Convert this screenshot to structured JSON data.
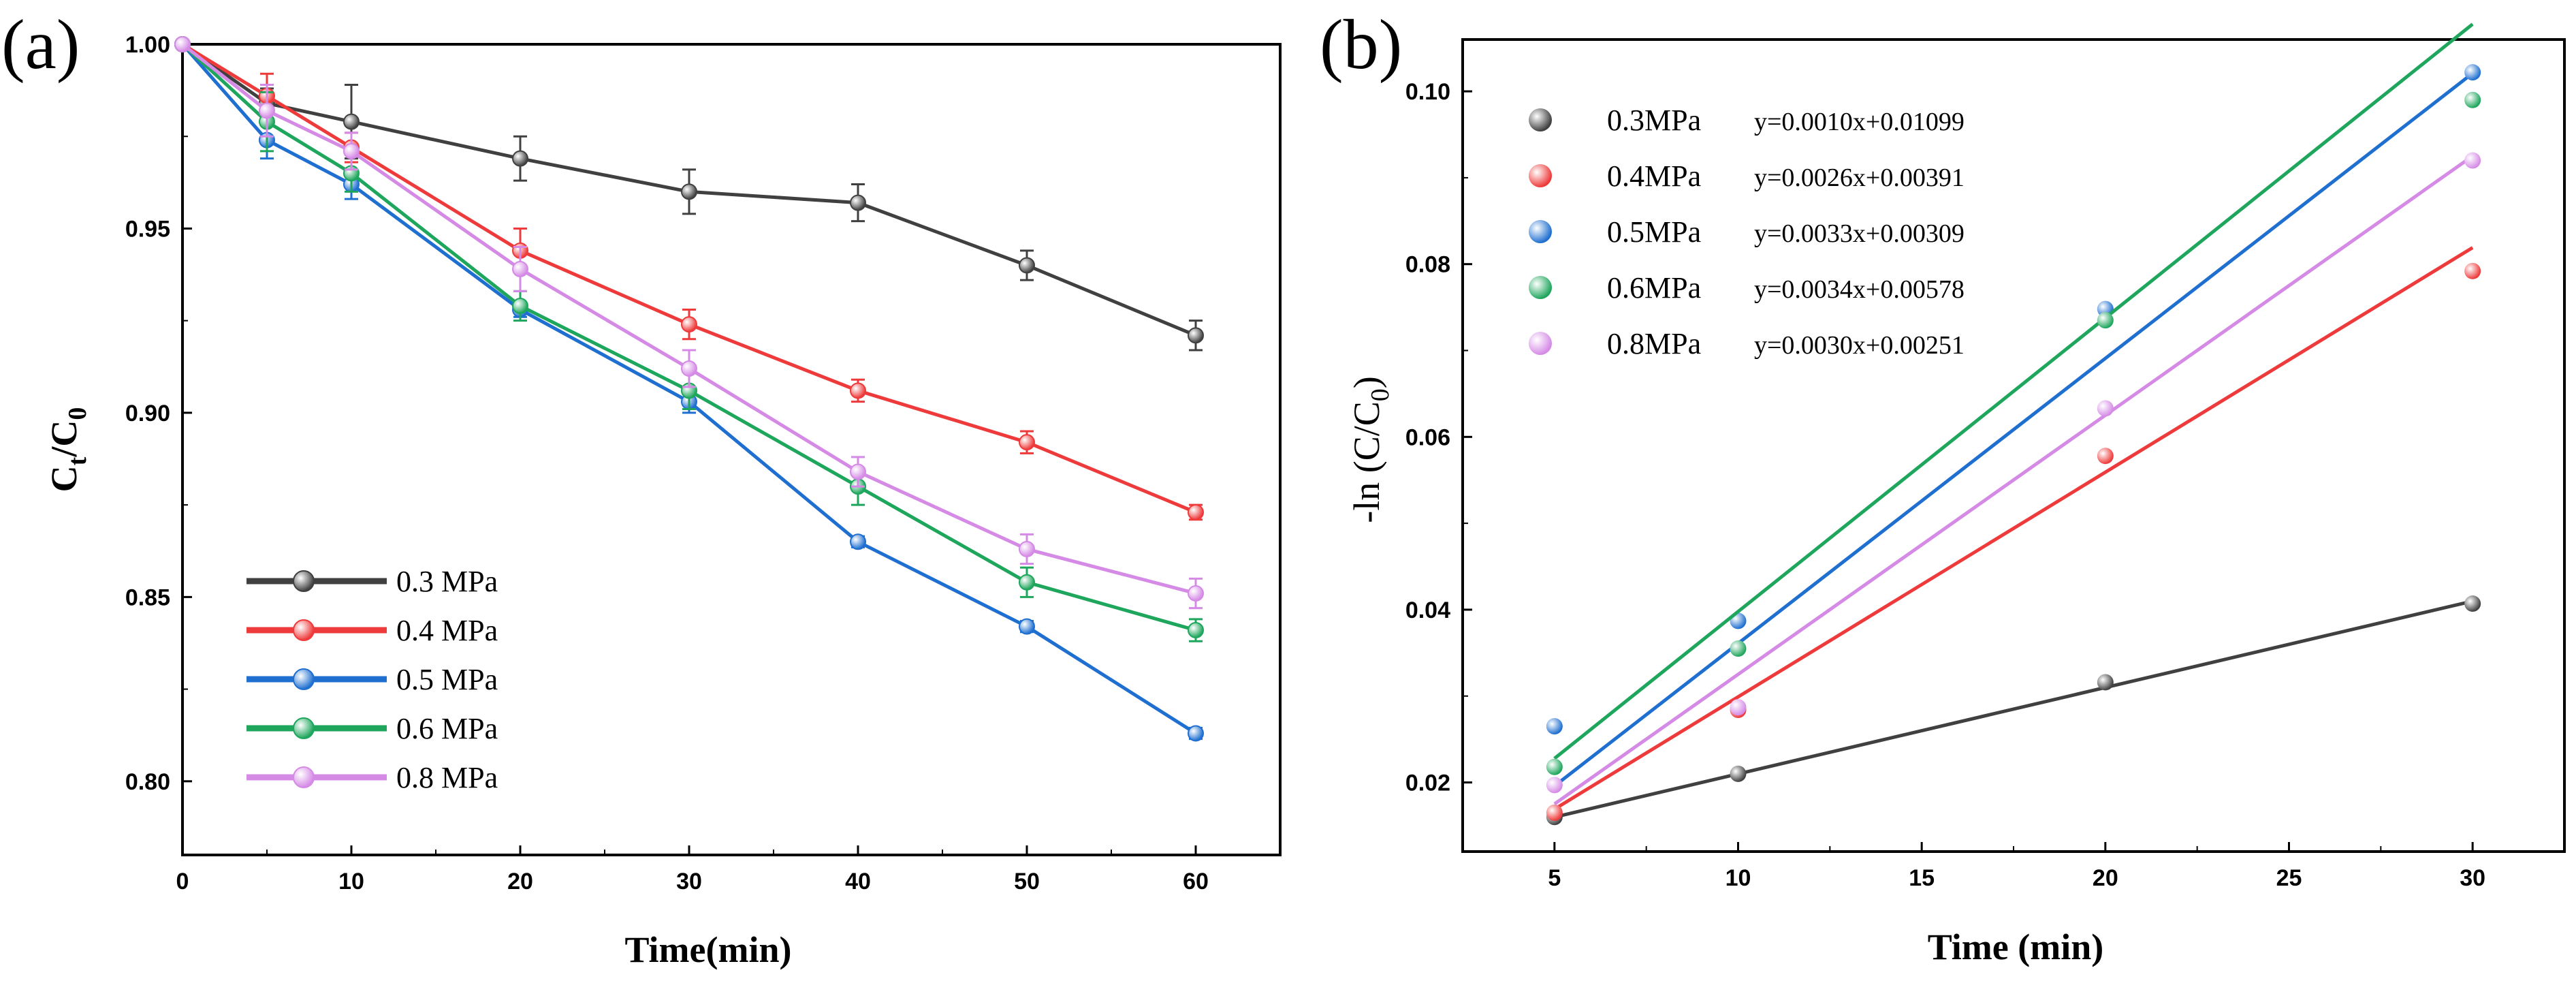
{
  "panels": {
    "a": {
      "label": "(a)",
      "ylabel_main": "C",
      "ylabel_sub1": "t",
      "ylabel_slash": "/C",
      "ylabel_sub2": "0",
      "xlabel": "Time(min)"
    },
    "b": {
      "label": "(b)",
      "ylabel_main": "-ln (C/C",
      "ylabel_sub": "0",
      "ylabel_end": ")",
      "xlabel": "Time (min)"
    }
  },
  "chart_data": [
    {
      "type": "line",
      "title": "",
      "xlabel": "Time(min)",
      "ylabel": "Ct/C0",
      "xlim": [
        0,
        65
      ],
      "ylim": [
        0.78,
        1.0
      ],
      "xticks": [
        0,
        10,
        20,
        30,
        40,
        50,
        60
      ],
      "xtick_labels": [
        "0",
        "10",
        "20",
        "30",
        "40",
        "50",
        "60"
      ],
      "yticks": [
        0.8,
        0.85,
        0.9,
        0.95,
        1.0
      ],
      "ytick_labels": [
        "0.80",
        "0.85",
        "0.90",
        "0.95",
        "1.00"
      ],
      "legend_position": "bottom-left",
      "x": [
        0,
        5,
        10,
        20,
        30,
        40,
        50,
        60
      ],
      "series": [
        {
          "name": "0.3 MPa",
          "color": "#404040",
          "values": [
            1.0,
            0.984,
            0.979,
            0.969,
            0.96,
            0.957,
            0.94,
            0.921
          ],
          "errors": [
            0,
            0.004,
            0.01,
            0.006,
            0.006,
            0.005,
            0.004,
            0.004
          ]
        },
        {
          "name": "0.4 MPa",
          "color": "#ee3a3a",
          "values": [
            1.0,
            0.986,
            0.972,
            0.944,
            0.924,
            0.906,
            0.892,
            0.873
          ],
          "errors": [
            0,
            0.006,
            0.004,
            0.006,
            0.004,
            0.003,
            0.003,
            0.002
          ]
        },
        {
          "name": "0.5 MPa",
          "color": "#1f6fd0",
          "values": [
            1.0,
            0.974,
            0.962,
            0.928,
            0.903,
            0.865,
            0.842,
            0.813
          ],
          "errors": [
            0,
            0.005,
            0.004,
            0.002,
            0.003,
            0.0015,
            0.0015,
            0.0015
          ]
        },
        {
          "name": "0.6 MPa",
          "color": "#1ea65c",
          "values": [
            1.0,
            0.979,
            0.965,
            0.929,
            0.906,
            0.88,
            0.854,
            0.841
          ],
          "errors": [
            0,
            0.008,
            0.005,
            0.004,
            0.005,
            0.005,
            0.004,
            0.003
          ]
        },
        {
          "name": "0.8 MPa",
          "color": "#d58ae6",
          "values": [
            1.0,
            0.982,
            0.971,
            0.939,
            0.912,
            0.884,
            0.863,
            0.851
          ],
          "errors": [
            0,
            0.007,
            0.005,
            0.006,
            0.005,
            0.004,
            0.004,
            0.004
          ]
        }
      ]
    },
    {
      "type": "scatter",
      "title": "",
      "xlabel": "Time (min)",
      "ylabel": "-ln (C/C0)",
      "xlim": [
        2.5,
        32.5
      ],
      "ylim": [
        0.012,
        0.106
      ],
      "xticks": [
        5,
        10,
        15,
        20,
        25,
        30
      ],
      "xtick_labels": [
        "5",
        "10",
        "15",
        "20",
        "25",
        "30"
      ],
      "yticks": [
        0.02,
        0.04,
        0.06,
        0.08,
        0.1
      ],
      "ytick_labels": [
        "0.02",
        "0.04",
        "0.06",
        "0.08",
        "0.10"
      ],
      "legend_position": "top-left",
      "x": [
        5,
        10,
        20,
        30
      ],
      "series": [
        {
          "name": "0.3MPa",
          "equation": "y=0.0010x+0.01099",
          "color": "#404040",
          "values": [
            0.016,
            0.021,
            0.0316,
            0.0407
          ],
          "fit": {
            "slope": 0.001,
            "intercept": 0.01099
          }
        },
        {
          "name": "0.4MPa",
          "equation": "y=0.0026x+0.00391",
          "color": "#ee3a3a",
          "values": [
            0.0165,
            0.0284,
            0.0578,
            0.0792
          ],
          "fit": {
            "slope": 0.0026,
            "intercept": 0.00391
          }
        },
        {
          "name": "0.5MPa",
          "equation": "y=0.0033x+0.00309",
          "color": "#1f6fd0",
          "values": [
            0.0265,
            0.0387,
            0.0748,
            0.1022
          ],
          "fit": {
            "slope": 0.0033,
            "intercept": 0.00309
          }
        },
        {
          "name": "0.6MPa",
          "equation": "y=0.0034x+0.00578",
          "color": "#1ea65c",
          "values": [
            0.0218,
            0.0355,
            0.0735,
            0.099
          ],
          "fit": {
            "slope": 0.0034,
            "intercept": 0.00578
          }
        },
        {
          "name": "0.8MPa",
          "equation": "y=0.0030x+0.00251",
          "color": "#d58ae6",
          "values": [
            0.0197,
            0.0287,
            0.0633,
            0.092
          ],
          "fit": {
            "slope": 0.003,
            "intercept": 0.00251
          }
        }
      ]
    }
  ]
}
